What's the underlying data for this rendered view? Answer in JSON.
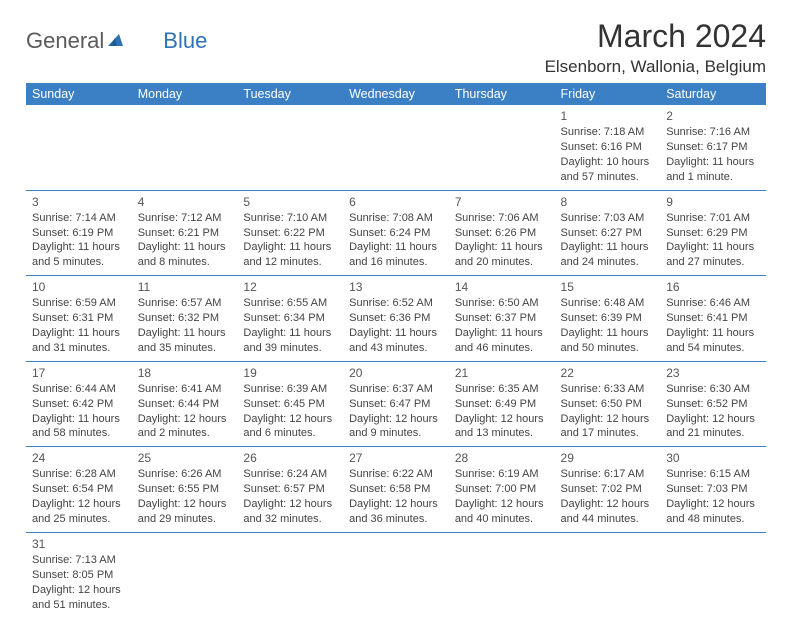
{
  "logo": {
    "general": "General",
    "blue": "Blue"
  },
  "title": "March 2024",
  "location": "Elsenborn, Wallonia, Belgium",
  "colors": {
    "header_bg": "#3b7fc4",
    "header_fg": "#ffffff",
    "row_border": "#3b7fc4",
    "logo_gray": "#5a5a5a",
    "logo_blue": "#2f72b6"
  },
  "weekdays": [
    "Sunday",
    "Monday",
    "Tuesday",
    "Wednesday",
    "Thursday",
    "Friday",
    "Saturday"
  ],
  "weeks": [
    [
      null,
      null,
      null,
      null,
      null,
      {
        "n": "1",
        "sr": "Sunrise: 7:18 AM",
        "ss": "Sunset: 6:16 PM",
        "dl": "Daylight: 10 hours and 57 minutes."
      },
      {
        "n": "2",
        "sr": "Sunrise: 7:16 AM",
        "ss": "Sunset: 6:17 PM",
        "dl": "Daylight: 11 hours and 1 minute."
      }
    ],
    [
      {
        "n": "3",
        "sr": "Sunrise: 7:14 AM",
        "ss": "Sunset: 6:19 PM",
        "dl": "Daylight: 11 hours and 5 minutes."
      },
      {
        "n": "4",
        "sr": "Sunrise: 7:12 AM",
        "ss": "Sunset: 6:21 PM",
        "dl": "Daylight: 11 hours and 8 minutes."
      },
      {
        "n": "5",
        "sr": "Sunrise: 7:10 AM",
        "ss": "Sunset: 6:22 PM",
        "dl": "Daylight: 11 hours and 12 minutes."
      },
      {
        "n": "6",
        "sr": "Sunrise: 7:08 AM",
        "ss": "Sunset: 6:24 PM",
        "dl": "Daylight: 11 hours and 16 minutes."
      },
      {
        "n": "7",
        "sr": "Sunrise: 7:06 AM",
        "ss": "Sunset: 6:26 PM",
        "dl": "Daylight: 11 hours and 20 minutes."
      },
      {
        "n": "8",
        "sr": "Sunrise: 7:03 AM",
        "ss": "Sunset: 6:27 PM",
        "dl": "Daylight: 11 hours and 24 minutes."
      },
      {
        "n": "9",
        "sr": "Sunrise: 7:01 AM",
        "ss": "Sunset: 6:29 PM",
        "dl": "Daylight: 11 hours and 27 minutes."
      }
    ],
    [
      {
        "n": "10",
        "sr": "Sunrise: 6:59 AM",
        "ss": "Sunset: 6:31 PM",
        "dl": "Daylight: 11 hours and 31 minutes."
      },
      {
        "n": "11",
        "sr": "Sunrise: 6:57 AM",
        "ss": "Sunset: 6:32 PM",
        "dl": "Daylight: 11 hours and 35 minutes."
      },
      {
        "n": "12",
        "sr": "Sunrise: 6:55 AM",
        "ss": "Sunset: 6:34 PM",
        "dl": "Daylight: 11 hours and 39 minutes."
      },
      {
        "n": "13",
        "sr": "Sunrise: 6:52 AM",
        "ss": "Sunset: 6:36 PM",
        "dl": "Daylight: 11 hours and 43 minutes."
      },
      {
        "n": "14",
        "sr": "Sunrise: 6:50 AM",
        "ss": "Sunset: 6:37 PM",
        "dl": "Daylight: 11 hours and 46 minutes."
      },
      {
        "n": "15",
        "sr": "Sunrise: 6:48 AM",
        "ss": "Sunset: 6:39 PM",
        "dl": "Daylight: 11 hours and 50 minutes."
      },
      {
        "n": "16",
        "sr": "Sunrise: 6:46 AM",
        "ss": "Sunset: 6:41 PM",
        "dl": "Daylight: 11 hours and 54 minutes."
      }
    ],
    [
      {
        "n": "17",
        "sr": "Sunrise: 6:44 AM",
        "ss": "Sunset: 6:42 PM",
        "dl": "Daylight: 11 hours and 58 minutes."
      },
      {
        "n": "18",
        "sr": "Sunrise: 6:41 AM",
        "ss": "Sunset: 6:44 PM",
        "dl": "Daylight: 12 hours and 2 minutes."
      },
      {
        "n": "19",
        "sr": "Sunrise: 6:39 AM",
        "ss": "Sunset: 6:45 PM",
        "dl": "Daylight: 12 hours and 6 minutes."
      },
      {
        "n": "20",
        "sr": "Sunrise: 6:37 AM",
        "ss": "Sunset: 6:47 PM",
        "dl": "Daylight: 12 hours and 9 minutes."
      },
      {
        "n": "21",
        "sr": "Sunrise: 6:35 AM",
        "ss": "Sunset: 6:49 PM",
        "dl": "Daylight: 12 hours and 13 minutes."
      },
      {
        "n": "22",
        "sr": "Sunrise: 6:33 AM",
        "ss": "Sunset: 6:50 PM",
        "dl": "Daylight: 12 hours and 17 minutes."
      },
      {
        "n": "23",
        "sr": "Sunrise: 6:30 AM",
        "ss": "Sunset: 6:52 PM",
        "dl": "Daylight: 12 hours and 21 minutes."
      }
    ],
    [
      {
        "n": "24",
        "sr": "Sunrise: 6:28 AM",
        "ss": "Sunset: 6:54 PM",
        "dl": "Daylight: 12 hours and 25 minutes."
      },
      {
        "n": "25",
        "sr": "Sunrise: 6:26 AM",
        "ss": "Sunset: 6:55 PM",
        "dl": "Daylight: 12 hours and 29 minutes."
      },
      {
        "n": "26",
        "sr": "Sunrise: 6:24 AM",
        "ss": "Sunset: 6:57 PM",
        "dl": "Daylight: 12 hours and 32 minutes."
      },
      {
        "n": "27",
        "sr": "Sunrise: 6:22 AM",
        "ss": "Sunset: 6:58 PM",
        "dl": "Daylight: 12 hours and 36 minutes."
      },
      {
        "n": "28",
        "sr": "Sunrise: 6:19 AM",
        "ss": "Sunset: 7:00 PM",
        "dl": "Daylight: 12 hours and 40 minutes."
      },
      {
        "n": "29",
        "sr": "Sunrise: 6:17 AM",
        "ss": "Sunset: 7:02 PM",
        "dl": "Daylight: 12 hours and 44 minutes."
      },
      {
        "n": "30",
        "sr": "Sunrise: 6:15 AM",
        "ss": "Sunset: 7:03 PM",
        "dl": "Daylight: 12 hours and 48 minutes."
      }
    ],
    [
      {
        "n": "31",
        "sr": "Sunrise: 7:13 AM",
        "ss": "Sunset: 8:05 PM",
        "dl": "Daylight: 12 hours and 51 minutes."
      },
      null,
      null,
      null,
      null,
      null,
      null
    ]
  ]
}
